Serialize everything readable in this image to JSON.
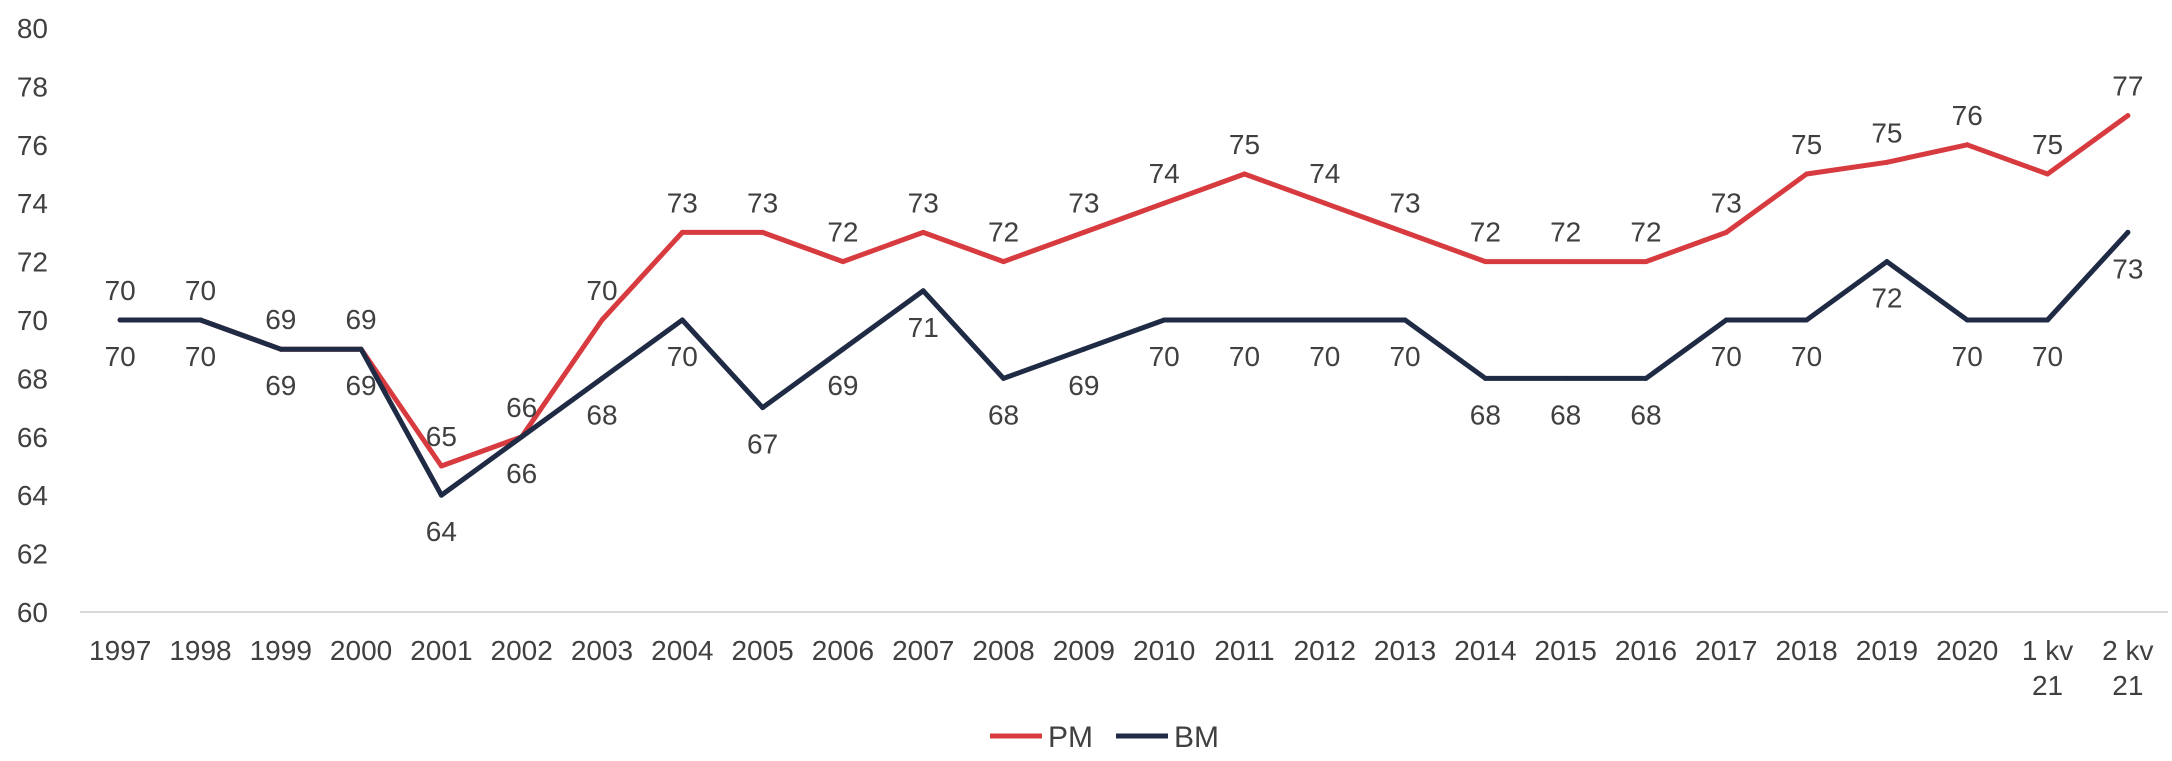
{
  "chart_data": {
    "type": "line",
    "title": "",
    "xlabel": "",
    "ylabel": "",
    "ylim": [
      60,
      80
    ],
    "y_ticks": [
      60,
      62,
      64,
      66,
      68,
      70,
      72,
      74,
      76,
      78,
      80
    ],
    "grid": false,
    "legend_position": "bottom",
    "categories": [
      [
        "1997"
      ],
      [
        "1998"
      ],
      [
        "1999"
      ],
      [
        "2000"
      ],
      [
        "2001"
      ],
      [
        "2002"
      ],
      [
        "2003"
      ],
      [
        "2004"
      ],
      [
        "2005"
      ],
      [
        "2006"
      ],
      [
        "2007"
      ],
      [
        "2008"
      ],
      [
        "2009"
      ],
      [
        "2010"
      ],
      [
        "2011"
      ],
      [
        "2012"
      ],
      [
        "2013"
      ],
      [
        "2014"
      ],
      [
        "2015"
      ],
      [
        "2016"
      ],
      [
        "2017"
      ],
      [
        "2018"
      ],
      [
        "2019"
      ],
      [
        "2020"
      ],
      [
        "1 kv",
        "21"
      ],
      [
        "2 kv",
        "21"
      ]
    ],
    "series": [
      {
        "name": "PM",
        "color": "#D83B3F",
        "values": [
          70,
          70,
          69,
          69,
          65,
          66,
          70,
          73,
          73,
          72,
          73,
          72,
          73,
          74,
          75,
          74,
          73,
          72,
          72,
          72,
          73,
          75,
          75.4,
          76,
          75,
          77
        ],
        "labels": [
          "70",
          "70",
          "69",
          "69",
          "65",
          "66",
          "70",
          "73",
          "73",
          "72",
          "73",
          "72",
          "73",
          "74",
          "75",
          "74",
          "73",
          "72",
          "72",
          "72",
          "73",
          "75",
          "75",
          "76",
          "75",
          "77"
        ],
        "label_pos": "above"
      },
      {
        "name": "BM",
        "color": "#1F2A44",
        "values": [
          70,
          70,
          69,
          69,
          64,
          66,
          68,
          70,
          67,
          69,
          71,
          68,
          69,
          70,
          70,
          70,
          70,
          68,
          68,
          68,
          70,
          70,
          72,
          70,
          70,
          73
        ],
        "labels": [
          "70",
          "70",
          "69",
          "69",
          "64",
          "66",
          "68",
          "70",
          "67",
          "69",
          "71",
          "68",
          "69",
          "70",
          "70",
          "70",
          "70",
          "68",
          "68",
          "68",
          "70",
          "70",
          "72",
          "70",
          "70",
          "73"
        ],
        "label_pos": "below"
      }
    ]
  }
}
